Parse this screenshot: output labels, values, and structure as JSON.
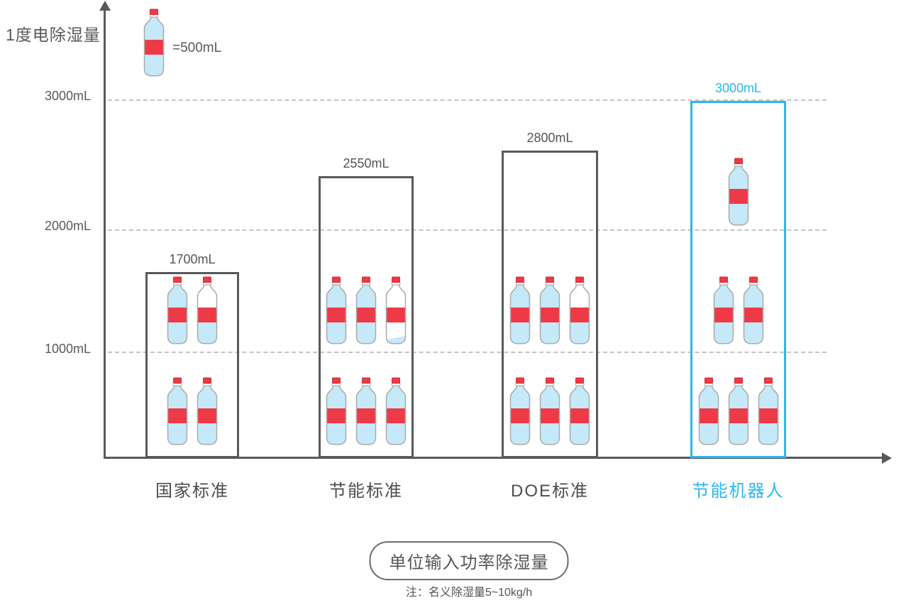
{
  "colors": {
    "accent_blue": "#29b7ef",
    "box_border": "#58595b",
    "bottle_red": "#ee3a46",
    "bottle_red_dark": "#d32b38",
    "water_blue": "#c5e9f8",
    "bottle_outline": "#aaaaaa",
    "grid_gray": "#c4c4c4",
    "text_gray": "#555555",
    "category_gray": "#4d4d4d"
  },
  "chart_data": {
    "type": "bar",
    "y_axis_title": "1度电除湿量",
    "x_axis_caption": "单位输入功率除湿量",
    "footnote": "注：名义除湿量5~10kg/h",
    "legend": {
      "bottle_equals": "=500mL",
      "bottle_unit_ml": 500
    },
    "ylim": [
      0,
      3000
    ],
    "grid": "dashed horizontal gridlines at 1000/2000/3000 mL",
    "y_ticks": [
      {
        "label": "3000mL",
        "value": 3000
      },
      {
        "label": "2000mL",
        "value": 2000
      },
      {
        "label": "1000mL",
        "value": 1000
      }
    ],
    "categories": [
      "国家标准",
      "节能标准",
      "DOE标准",
      "节能机器人"
    ],
    "values_mL": [
      1700,
      2550,
      2800,
      3000
    ],
    "bars": [
      {
        "category": "国家标准",
        "value_label": "1700mL",
        "value_mL": 1700,
        "highlight": false,
        "bottle_rows": [
          {
            "section": 1,
            "fills": [
              1,
              0.4
            ]
          },
          {
            "section": 0,
            "fills": [
              1,
              1
            ]
          }
        ]
      },
      {
        "category": "节能标准",
        "value_label": "2550mL",
        "value_mL": 2550,
        "highlight": false,
        "bottle_rows": [
          {
            "section": 1,
            "fills": [
              1,
              1,
              0.1
            ]
          },
          {
            "section": 0,
            "fills": [
              1,
              1,
              1
            ]
          }
        ]
      },
      {
        "category": "DOE标准",
        "value_label": "2800mL",
        "value_mL": 2800,
        "highlight": false,
        "bottle_rows": [
          {
            "section": 1,
            "fills": [
              1,
              1,
              0.6
            ]
          },
          {
            "section": 0,
            "fills": [
              1,
              1,
              1
            ]
          }
        ]
      },
      {
        "category": "节能机器人",
        "value_label": "3000mL",
        "value_mL": 3000,
        "highlight": true,
        "bottle_rows": [
          {
            "section": 2,
            "fills": [
              1
            ]
          },
          {
            "section": 1,
            "fills": [
              1,
              1
            ]
          },
          {
            "section": 0,
            "fills": [
              1,
              1,
              1
            ]
          }
        ]
      }
    ]
  }
}
